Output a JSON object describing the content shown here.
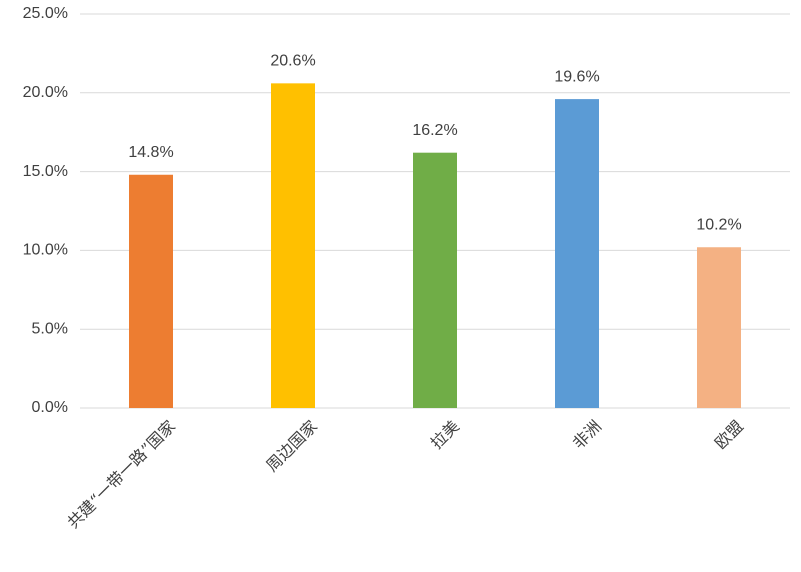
{
  "chart_data": {
    "type": "bar",
    "categories": [
      "共建“一带一路”国家",
      "周边国家",
      "拉美",
      "非洲",
      "欧盟"
    ],
    "values": [
      14.8,
      20.6,
      16.2,
      19.6,
      10.2
    ],
    "value_labels": [
      "14.8%",
      "20.6%",
      "16.2%",
      "19.6%",
      "10.2%"
    ],
    "colors": [
      "#ed7d31",
      "#ffc000",
      "#70ad47",
      "#5b9bd5",
      "#f4b183"
    ],
    "ylim": [
      0,
      25
    ],
    "yticks": [
      {
        "value": 0,
        "label": "0.0%"
      },
      {
        "value": 5,
        "label": "5.0%"
      },
      {
        "value": 10,
        "label": "10.0%"
      },
      {
        "value": 15,
        "label": "15.0%"
      },
      {
        "value": 20,
        "label": "20.0%"
      },
      {
        "value": 25,
        "label": "25.0%"
      }
    ],
    "grid": true
  }
}
